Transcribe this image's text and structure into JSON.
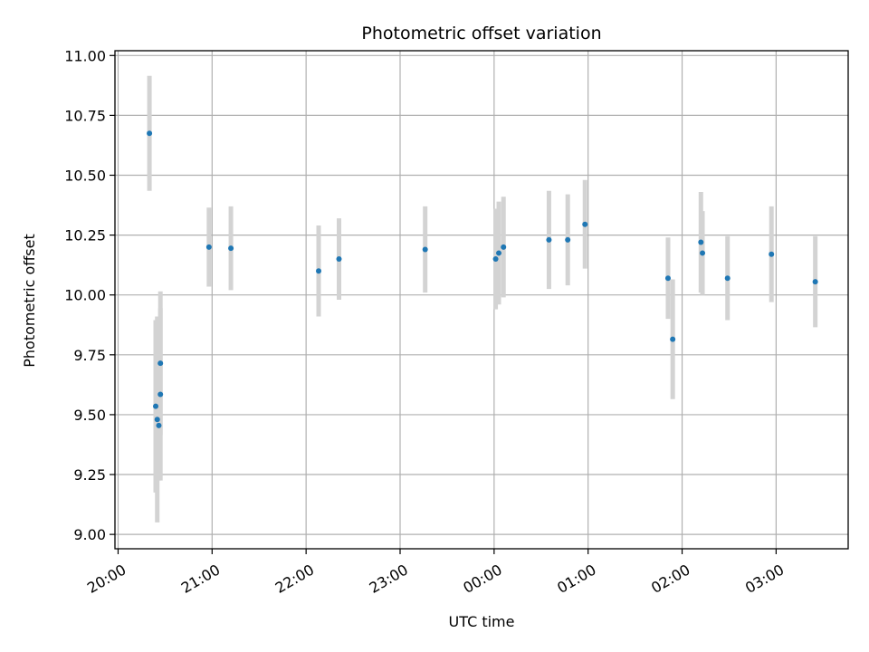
{
  "chart_data": {
    "type": "scatter",
    "title": "Photometric offset variation",
    "xlabel": "UTC time",
    "ylabel": "Photometric offset",
    "x_axis_type": "time",
    "x_ticks": [
      "20:00",
      "21:00",
      "22:00",
      "23:00",
      "00:00",
      "01:00",
      "02:00",
      "03:00"
    ],
    "x_range": [
      "19:58",
      "03:46"
    ],
    "y_ticks": [
      "9.00",
      "9.25",
      "9.50",
      "9.75",
      "10.00",
      "10.25",
      "10.50",
      "10.75",
      "11.00"
    ],
    "ylim": [
      8.94,
      11.02
    ],
    "grid": true,
    "colors": {
      "point": "#1f77b4",
      "errorbar": "#d3d3d3",
      "grid": "#b0b0b0"
    },
    "points": [
      {
        "x": "20:20",
        "y": 10.675,
        "err": 0.24
      },
      {
        "x": "20:24",
        "y": 9.535,
        "err": 0.36
      },
      {
        "x": "20:25",
        "y": 9.48,
        "err": 0.43
      },
      {
        "x": "20:26",
        "y": 9.455,
        "err": 0.23
      },
      {
        "x": "20:27",
        "y": 9.585,
        "err": 0.36
      },
      {
        "x": "20:27",
        "y": 9.715,
        "err": 0.3
      },
      {
        "x": "20:58",
        "y": 10.2,
        "err": 0.165
      },
      {
        "x": "21:12",
        "y": 10.195,
        "err": 0.175
      },
      {
        "x": "22:08",
        "y": 10.1,
        "err": 0.19
      },
      {
        "x": "22:21",
        "y": 10.15,
        "err": 0.17
      },
      {
        "x": "23:16",
        "y": 10.19,
        "err": 0.18
      },
      {
        "x": "00:01",
        "y": 10.15,
        "err": 0.21
      },
      {
        "x": "00:03",
        "y": 10.175,
        "err": 0.215
      },
      {
        "x": "00:06",
        "y": 10.2,
        "err": 0.21
      },
      {
        "x": "00:35",
        "y": 10.23,
        "err": 0.205
      },
      {
        "x": "00:47",
        "y": 10.23,
        "err": 0.19
      },
      {
        "x": "00:58",
        "y": 10.295,
        "err": 0.185
      },
      {
        "x": "01:51",
        "y": 10.07,
        "err": 0.17
      },
      {
        "x": "01:54",
        "y": 9.815,
        "err": 0.25
      },
      {
        "x": "02:12",
        "y": 10.22,
        "err": 0.21
      },
      {
        "x": "02:13",
        "y": 10.175,
        "err": 0.175
      },
      {
        "x": "02:29",
        "y": 10.07,
        "err": 0.175
      },
      {
        "x": "02:57",
        "y": 10.17,
        "err": 0.2
      },
      {
        "x": "03:25",
        "y": 10.055,
        "err": 0.19
      }
    ]
  }
}
